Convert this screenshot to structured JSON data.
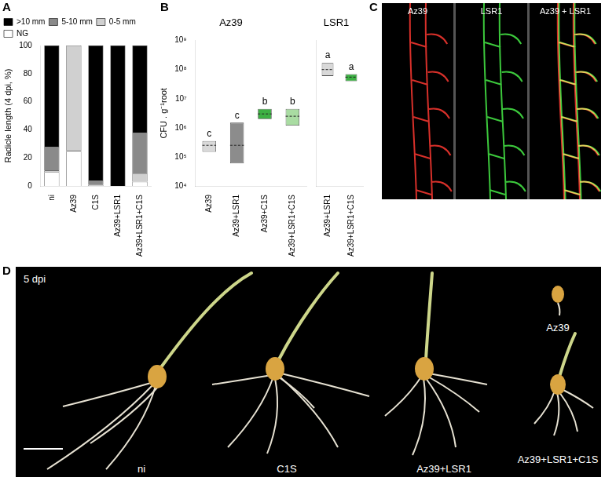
{
  "chart_data": [
    {
      "panel": "A",
      "type": "bar",
      "stacked": true,
      "grid": false,
      "legend": "top",
      "y_label": "Radicle length (4 dpi, %)",
      "categories": [
        "ni",
        "Az39",
        "C1S",
        "Az39+LSR1",
        "Az39+LSR1+C1S"
      ],
      "series": [
        {
          "name": "NG",
          "color": "#ffffff",
          "values": [
            10,
            25,
            0,
            0,
            3
          ]
        },
        {
          "name": "0-5 mm",
          "color": "#d0d0d0",
          "values": [
            1,
            75,
            1,
            0,
            6
          ]
        },
        {
          "name": "5-10 mm",
          "color": "#8a8a8a",
          "values": [
            17,
            0,
            3,
            0,
            29
          ]
        },
        {
          "name": ">10 mm",
          "color": "#000000",
          "values": [
            72,
            0,
            96,
            100,
            62
          ]
        }
      ],
      "ylim": [
        0,
        100
      ],
      "yticks": [
        0,
        20,
        40,
        60,
        80,
        100
      ]
    },
    {
      "panel": "B",
      "type": "violin",
      "title": "Az39",
      "log": "y",
      "grid": false,
      "y_label": "CFU . g⁻¹root",
      "categories": [
        "Az39",
        "Az39+LSR1",
        "Az39+C1S",
        "Az39+LSR1+C1S"
      ],
      "min": [
        150000,
        60000,
        2000000,
        1200000
      ],
      "max": [
        350000,
        1500000,
        4500000,
        4500000
      ],
      "median": [
        250000,
        250000,
        3000000,
        2500000
      ],
      "colors": [
        "#d9d9d9",
        "#8c8c8c",
        "#3cb043",
        "#a9dca2"
      ],
      "letters": [
        "c",
        "c",
        "b",
        "b"
      ],
      "ylim": [
        10000,
        1000000000
      ],
      "yticks": [
        {
          "value": 10000,
          "label": "10⁴"
        },
        {
          "value": 100000,
          "label": "10⁵"
        },
        {
          "value": 1000000,
          "label": "10⁶"
        },
        {
          "value": 10000000,
          "label": "10⁷"
        },
        {
          "value": 100000000,
          "label": "10⁸"
        },
        {
          "value": 1000000000,
          "label": "10⁹"
        }
      ]
    },
    {
      "type": "violin",
      "title": "LSR1",
      "log": "y",
      "grid": false,
      "tick_labels": "x",
      "categories": [
        "Az39+LSR1",
        "Az39+LSR1+C1S"
      ],
      "min": [
        60000000,
        40000000
      ],
      "max": [
        170000000,
        70000000
      ],
      "median": [
        100000000,
        55000000
      ],
      "colors": [
        "#d9d9d9",
        "#3cb043"
      ],
      "letters": [
        "a",
        "a"
      ],
      "ylim": [
        10000,
        1000000000
      ],
      "yticks": [
        {
          "value": 10000,
          "label": "10⁴"
        },
        {
          "value": 100000,
          "label": "10⁵"
        },
        {
          "value": 1000000,
          "label": "10⁶"
        },
        {
          "value": 10000000,
          "label": "10⁷"
        },
        {
          "value": 100000000,
          "label": "10⁸"
        },
        {
          "value": 1000000000,
          "label": "10⁹"
        }
      ]
    }
  ],
  "panel_c": {
    "panel": "C",
    "images": [
      {
        "label": "Az39",
        "colors": [
          "#d8302a"
        ]
      },
      {
        "label": "LSR1",
        "colors": [
          "#3cc83c"
        ]
      },
      {
        "label": "Az39 + LSR1",
        "colors": [
          "#d8302a",
          "#3cc83c"
        ]
      }
    ]
  },
  "panel_d": {
    "panel": "D",
    "time": "5 dpi",
    "seedlings": [
      {
        "label": "ni"
      },
      {
        "label": "C1S"
      },
      {
        "label": "Az39+LSR1"
      },
      {
        "label": "Az39"
      },
      {
        "label": "Az39+LSR1+C1S"
      }
    ]
  }
}
